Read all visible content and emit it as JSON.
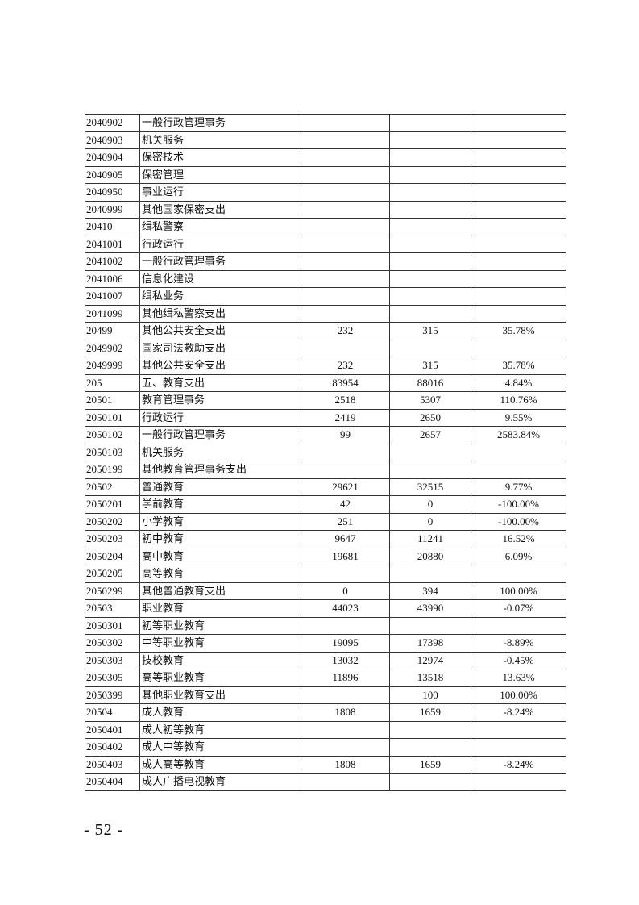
{
  "table": {
    "rows": [
      [
        "2040902",
        "一般行政管理事务",
        "",
        "",
        ""
      ],
      [
        "2040903",
        "机关服务",
        "",
        "",
        ""
      ],
      [
        "2040904",
        "保密技术",
        "",
        "",
        ""
      ],
      [
        "2040905",
        "保密管理",
        "",
        "",
        ""
      ],
      [
        "2040950",
        "事业运行",
        "",
        "",
        ""
      ],
      [
        "2040999",
        "其他国家保密支出",
        "",
        "",
        ""
      ],
      [
        "20410",
        "缉私警察",
        "",
        "",
        ""
      ],
      [
        "2041001",
        "行政运行",
        "",
        "",
        ""
      ],
      [
        "2041002",
        "一般行政管理事务",
        "",
        "",
        ""
      ],
      [
        "2041006",
        "信息化建设",
        "",
        "",
        ""
      ],
      [
        "2041007",
        "缉私业务",
        "",
        "",
        ""
      ],
      [
        "2041099",
        "其他缉私警察支出",
        "",
        "",
        ""
      ],
      [
        "20499",
        "其他公共安全支出",
        "232",
        "315",
        "35.78%"
      ],
      [
        "2049902",
        "国家司法救助支出",
        "",
        "",
        ""
      ],
      [
        "2049999",
        "其他公共安全支出",
        "232",
        "315",
        "35.78%"
      ],
      [
        "205",
        "五、教育支出",
        "83954",
        "88016",
        "4.84%"
      ],
      [
        "20501",
        "教育管理事务",
        "2518",
        "5307",
        "110.76%"
      ],
      [
        "2050101",
        "行政运行",
        "2419",
        "2650",
        "9.55%"
      ],
      [
        "2050102",
        "一般行政管理事务",
        "99",
        "2657",
        "2583.84%"
      ],
      [
        "2050103",
        "机关服务",
        "",
        "",
        ""
      ],
      [
        "2050199",
        "其他教育管理事务支出",
        "",
        "",
        ""
      ],
      [
        "20502",
        "普通教育",
        "29621",
        "32515",
        "9.77%"
      ],
      [
        "2050201",
        "学前教育",
        "42",
        "0",
        "-100.00%"
      ],
      [
        "2050202",
        "小学教育",
        "251",
        "0",
        "-100.00%"
      ],
      [
        "2050203",
        "初中教育",
        "9647",
        "11241",
        "16.52%"
      ],
      [
        "2050204",
        "高中教育",
        "19681",
        "20880",
        "6.09%"
      ],
      [
        "2050205",
        "高等教育",
        "",
        "",
        ""
      ],
      [
        "2050299",
        "其他普通教育支出",
        "0",
        "394",
        "100.00%"
      ],
      [
        "20503",
        "职业教育",
        "44023",
        "43990",
        "-0.07%"
      ],
      [
        "2050301",
        "初等职业教育",
        "",
        "",
        ""
      ],
      [
        "2050302",
        "中等职业教育",
        "19095",
        "17398",
        "-8.89%"
      ],
      [
        "2050303",
        "技校教育",
        "13032",
        "12974",
        "-0.45%"
      ],
      [
        "2050305",
        "高等职业教育",
        "11896",
        "13518",
        "13.63%"
      ],
      [
        "2050399",
        "其他职业教育支出",
        "",
        "100",
        "100.00%"
      ],
      [
        "20504",
        "成人教育",
        "1808",
        "1659",
        "-8.24%"
      ],
      [
        "2050401",
        "成人初等教育",
        "",
        "",
        ""
      ],
      [
        "2050402",
        "成人中等教育",
        "",
        "",
        ""
      ],
      [
        "2050403",
        "成人高等教育",
        "1808",
        "1659",
        "-8.24%"
      ],
      [
        "2050404",
        "成人广播电视教育",
        "",
        "",
        ""
      ]
    ]
  },
  "footer": {
    "page_number": "- 52 -"
  }
}
